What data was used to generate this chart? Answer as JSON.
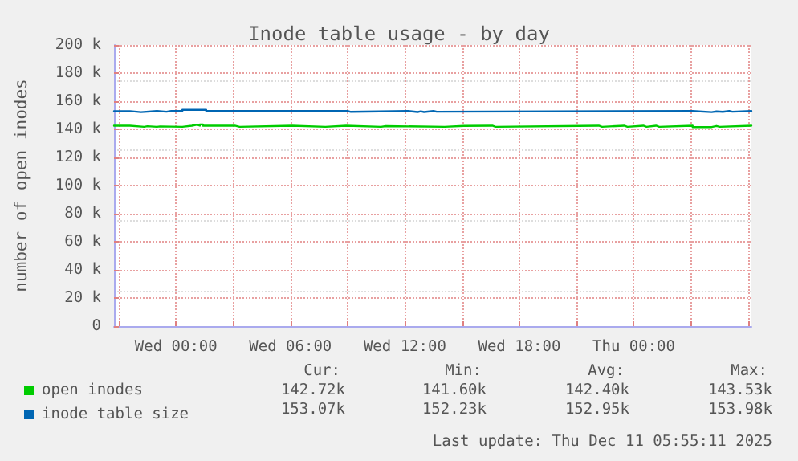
{
  "chart_data": {
    "type": "step",
    "title": "Inode table usage - by day",
    "ylabel": "number of open inodes",
    "xlim": [
      "2025-12-09T20:45",
      "2025-12-11T06:10"
    ],
    "xticks": [
      {
        "value": "2025-12-09T21:00",
        "label": null
      },
      {
        "value": "2025-12-10T00:00",
        "label": "Wed 00:00"
      },
      {
        "value": "2025-12-10T03:00",
        "label": null
      },
      {
        "value": "2025-12-10T06:00",
        "label": "Wed 06:00"
      },
      {
        "value": "2025-12-10T09:00",
        "label": null
      },
      {
        "value": "2025-12-10T12:00",
        "label": "Wed 12:00"
      },
      {
        "value": "2025-12-10T15:00",
        "label": null
      },
      {
        "value": "2025-12-10T18:00",
        "label": "Wed 18:00"
      },
      {
        "value": "2025-12-10T21:00",
        "label": null
      },
      {
        "value": "2025-12-11T00:00",
        "label": "Thu 00:00"
      },
      {
        "value": "2025-12-11T03:00",
        "label": null
      },
      {
        "value": "2025-12-11T06:00",
        "label": null
      }
    ],
    "ylim": [
      0,
      200
    ],
    "yticks": [
      0,
      {
        "value": 20,
        "label": "20 k"
      },
      {
        "value": 40,
        "label": "40 k"
      },
      {
        "value": 60,
        "label": "60 k"
      },
      {
        "value": 80,
        "label": "80 k"
      },
      {
        "value": 100,
        "label": "100 k"
      },
      {
        "value": 120,
        "label": "120 k"
      },
      {
        "value": 140,
        "label": "140 k"
      },
      {
        "value": 160,
        "label": "160 k"
      },
      {
        "value": 180,
        "label": "180 k"
      },
      {
        "value": 200,
        "label": "200 k"
      }
    ],
    "grid": true,
    "legend": "bottom left",
    "marker": "none",
    "line_style": "solid",
    "series": [
      {
        "name": "open inodes",
        "color": "#00cc00",
        "x": [
          "2025-12-09T20:45",
          "2025-12-09T21:35",
          "2025-12-09T22:20",
          "2025-12-09T22:30",
          "2025-12-09T23:00",
          "2025-12-09T23:10",
          "2025-12-10T00:20",
          "2025-12-10T00:50",
          "2025-12-10T01:05",
          "2025-12-10T01:15",
          "2025-12-10T01:25",
          "2025-12-10T03:05",
          "2025-12-10T03:20",
          "2025-12-10T06:05",
          "2025-12-10T07:50",
          "2025-12-10T08:55",
          "2025-12-10T10:45",
          "2025-12-10T11:00",
          "2025-12-10T14:05",
          "2025-12-10T15:05",
          "2025-12-10T16:35",
          "2025-12-10T16:45",
          "2025-12-10T22:10",
          "2025-12-10T22:20",
          "2025-12-10T23:30",
          "2025-12-10T23:40",
          "2025-12-11T00:30",
          "2025-12-11T00:40",
          "2025-12-11T01:10",
          "2025-12-11T01:20",
          "2025-12-11T03:05",
          "2025-12-11T04:05",
          "2025-12-11T04:20",
          "2025-12-11T04:30",
          "2025-12-11T06:10"
        ],
        "values": [
          142.6,
          141.8,
          142.2,
          141.8,
          142.1,
          141.8,
          142.6,
          143.3,
          142.6,
          143.5,
          142.6,
          141.8,
          142.6,
          141.8,
          142.6,
          141.8,
          142.3,
          141.8,
          142.4,
          142.6,
          141.8,
          142.6,
          141.8,
          142.6,
          141.8,
          142.6,
          141.8,
          142.6,
          141.8,
          142.6,
          141.6,
          142.4,
          141.8,
          142.6,
          142.7
        ]
      },
      {
        "name": "inode table size",
        "color": "#0066b3",
        "x": [
          "2025-12-09T20:45",
          "2025-12-09T21:35",
          "2025-12-09T22:10",
          "2025-12-09T23:00",
          "2025-12-09T23:30",
          "2025-12-09T23:45",
          "2025-12-10T00:20",
          "2025-12-10T01:35",
          "2025-12-10T09:00",
          "2025-12-10T09:10",
          "2025-12-10T12:10",
          "2025-12-10T12:40",
          "2025-12-10T12:50",
          "2025-12-10T13:00",
          "2025-12-10T13:30",
          "2025-12-10T13:40",
          "2025-12-11T03:05",
          "2025-12-11T04:05",
          "2025-12-11T04:20",
          "2025-12-11T04:40",
          "2025-12-11T05:00",
          "2025-12-11T05:10",
          "2025-12-11T06:10"
        ],
        "values": [
          152.9,
          152.2,
          153.0,
          152.5,
          153.0,
          153.0,
          153.9,
          153.0,
          152.4,
          153.0,
          152.3,
          152.8,
          152.3,
          153.0,
          152.5,
          153.0,
          152.2,
          152.7,
          152.4,
          153.0,
          152.5,
          153.0,
          153.1
        ]
      }
    ],
    "annotations": [
      "Cur:",
      "Min:",
      "Avg:",
      "Max:",
      "142.72k",
      "141.60k",
      "142.40k",
      "143.53k",
      "153.07k",
      "152.23k",
      "152.95k",
      "153.98k",
      "Last update: Thu Dec 11 05:55:11 2025"
    ]
  }
}
